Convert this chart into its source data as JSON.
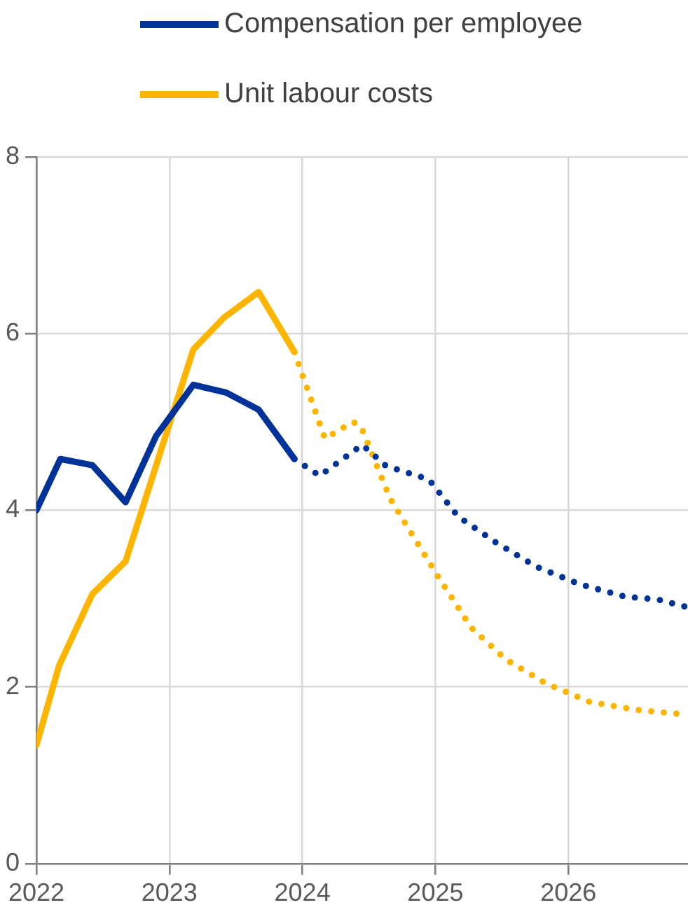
{
  "chart_data": {
    "type": "line",
    "xlim": [
      2022,
      2026.9
    ],
    "xticks": [
      2022,
      2023,
      2024,
      2025,
      2026
    ],
    "ylim": [
      0,
      8
    ],
    "yticks": [
      0,
      2,
      4,
      6,
      8
    ],
    "grid": true,
    "legend": "top",
    "marker": "none",
    "series": [
      {
        "name": "Compensation per employee",
        "color": "#003299",
        "line_style": "solid",
        "x": [
          2022.0,
          2022.18,
          2022.42,
          2022.67,
          2022.9,
          2023.18,
          2023.43,
          2023.67,
          2023.94
        ],
        "values": [
          4.0,
          4.58,
          4.51,
          4.09,
          4.84,
          5.42,
          5.33,
          5.14,
          4.58
        ]
      },
      {
        "name": "Unit labour costs",
        "color": "#ffb400",
        "line_style": "solid",
        "x": [
          2022.0,
          2022.17,
          2022.42,
          2022.67,
          2022.92,
          2023.18,
          2023.41,
          2023.67,
          2023.94
        ],
        "values": [
          1.34,
          2.24,
          3.05,
          3.42,
          4.6,
          5.82,
          6.18,
          6.47,
          5.79
        ]
      },
      {
        "color": "#003299",
        "line_style": "dotted",
        "x": [
          2023.94,
          2024.13,
          2024.45,
          2024.63,
          2024.95,
          2025.17,
          2025.46,
          2025.76,
          2026.09,
          2026.43,
          2026.67,
          2026.9
        ],
        "values": [
          4.58,
          4.39,
          4.74,
          4.5,
          4.35,
          3.93,
          3.63,
          3.36,
          3.16,
          3.02,
          2.99,
          2.9
        ]
      },
      {
        "color": "#ffb400",
        "line_style": "dotted",
        "x": [
          2023.94,
          2024.17,
          2024.38,
          2024.44,
          2024.66,
          2025.02,
          2025.27,
          2025.53,
          2025.83,
          2026.16,
          2026.51,
          2026.86
        ],
        "values": [
          5.79,
          4.81,
          5.0,
          4.95,
          4.13,
          3.25,
          2.67,
          2.31,
          2.04,
          1.83,
          1.74,
          1.69
        ]
      }
    ]
  }
}
